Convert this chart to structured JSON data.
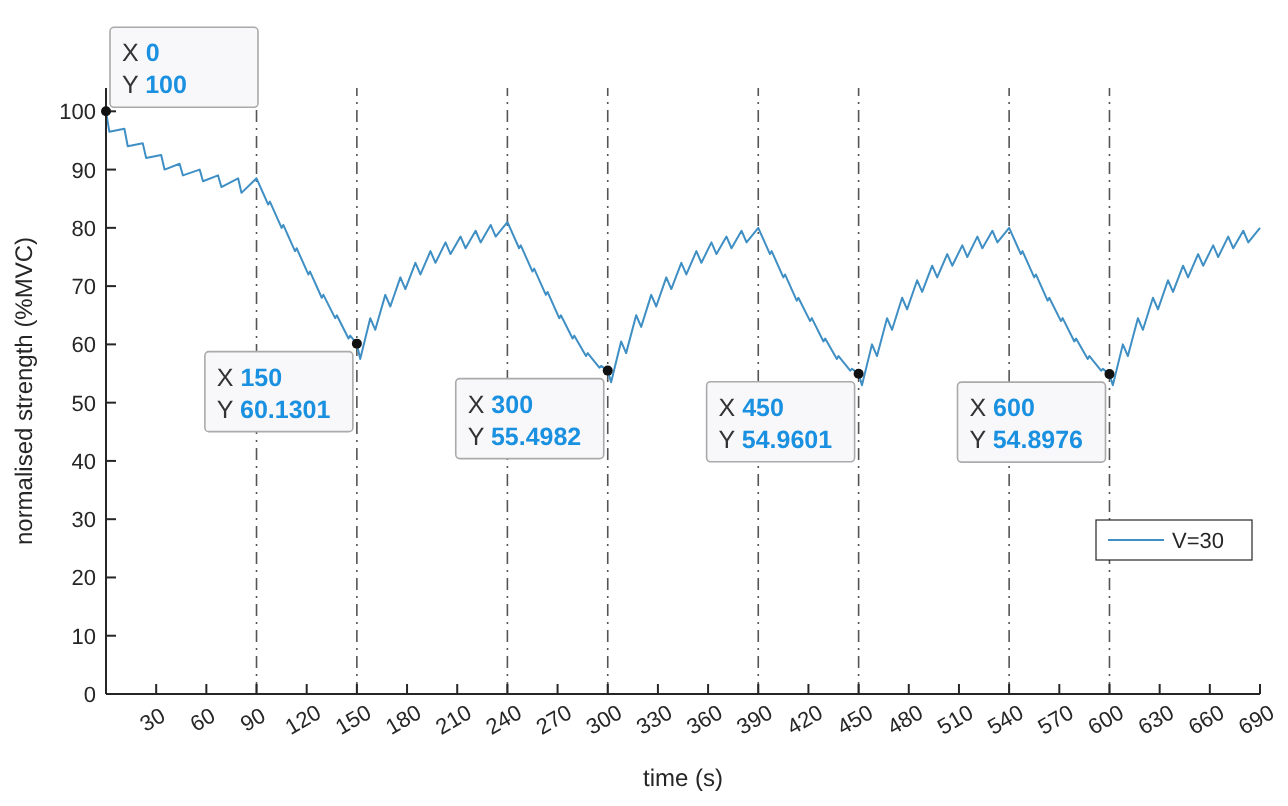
{
  "chart_data": {
    "type": "line",
    "xlabel": "time (s)",
    "ylabel": "normalised strength (%MVC)",
    "xlim": [
      0,
      690
    ],
    "ylim": [
      0,
      104
    ],
    "xticks": [
      30,
      60,
      90,
      120,
      150,
      180,
      210,
      240,
      270,
      300,
      330,
      360,
      390,
      420,
      450,
      480,
      510,
      540,
      570,
      600,
      630,
      660,
      690
    ],
    "yticks": [
      0,
      10,
      20,
      30,
      40,
      50,
      60,
      70,
      80,
      90,
      100
    ],
    "grid": false,
    "legend": "right",
    "marker": "none",
    "line_style": "solid",
    "x": [
      0,
      2,
      11,
      13,
      22,
      24,
      33,
      35,
      44,
      46,
      56,
      58,
      67,
      69,
      79,
      81,
      90,
      97,
      98,
      105,
      106,
      113,
      114,
      121,
      122,
      129,
      130,
      137,
      138,
      145,
      146,
      150,
      152,
      158,
      161,
      167,
      170,
      176,
      179,
      185,
      188,
      194,
      197,
      203,
      206,
      212,
      215,
      221,
      224,
      230,
      233,
      240,
      247,
      248,
      255,
      256,
      263,
      264,
      271,
      272,
      279,
      280,
      287,
      288,
      295,
      296,
      300,
      302,
      308,
      311,
      317,
      320,
      326,
      329,
      335,
      338,
      344,
      347,
      353,
      356,
      362,
      365,
      371,
      374,
      380,
      383,
      390,
      397,
      398,
      405,
      406,
      413,
      414,
      421,
      422,
      429,
      430,
      437,
      438,
      445,
      446,
      450,
      452,
      458,
      461,
      467,
      470,
      476,
      479,
      485,
      488,
      494,
      497,
      503,
      506,
      512,
      515,
      521,
      524,
      530,
      533,
      540,
      547,
      548,
      555,
      556,
      563,
      564,
      571,
      572,
      579,
      580,
      587,
      588,
      595,
      596,
      600,
      602,
      608,
      611,
      617,
      620,
      626,
      629,
      635,
      638,
      644,
      647,
      653,
      656,
      662,
      665,
      671,
      674,
      680,
      683,
      690
    ],
    "series": [
      {
        "name": "V=30",
        "color": "#3f8fc4",
        "values": [
          100,
          96.5,
          97,
          94,
          94.5,
          92,
          92.5,
          90,
          91,
          89,
          90,
          88,
          89,
          87,
          88.5,
          86,
          88.5,
          84,
          84.5,
          80,
          80.5,
          76,
          76.5,
          72,
          72.5,
          68,
          68.5,
          64.5,
          65,
          61,
          61.5,
          60.1,
          57.5,
          64.5,
          62.5,
          68.5,
          66.5,
          71.5,
          69.5,
          74,
          72,
          76,
          74,
          77.5,
          75.5,
          78.5,
          76.5,
          79.5,
          77.5,
          80.5,
          78.5,
          81,
          76.5,
          77,
          72.5,
          73,
          68.5,
          69,
          64.5,
          65,
          61,
          61.5,
          58,
          58.5,
          56,
          56.3,
          55.5,
          53.5,
          60.5,
          58.5,
          65,
          63,
          68.5,
          66.5,
          71.5,
          69.5,
          74,
          72,
          76,
          74,
          77.5,
          75.5,
          78.5,
          76.5,
          79.5,
          77.5,
          80,
          75.5,
          76,
          71.5,
          72,
          67.5,
          68,
          64,
          64.5,
          60.5,
          61,
          57.5,
          58,
          55.5,
          55.8,
          55,
          53,
          60,
          58,
          64.5,
          62.5,
          68,
          66,
          71,
          69,
          73.5,
          71.5,
          75.5,
          73.5,
          77,
          75,
          78.5,
          76.5,
          79.5,
          77.5,
          80,
          75.5,
          76,
          71.5,
          72,
          67.5,
          68,
          64,
          64.5,
          60.5,
          61,
          57.5,
          58,
          55.5,
          55.8,
          54.9,
          53,
          60,
          58,
          64.5,
          62.5,
          68,
          66,
          71,
          69,
          73.5,
          71.5,
          75.5,
          73.5,
          77,
          75,
          78.5,
          76.5,
          79.5,
          77.5,
          80
        ]
      }
    ],
    "ref_lines": [
      {
        "axis": "x",
        "value": 90,
        "color": "#555555",
        "line_style": "dashed"
      },
      {
        "axis": "x",
        "value": 150,
        "color": "#555555",
        "line_style": "dashed"
      },
      {
        "axis": "x",
        "value": 240,
        "color": "#555555",
        "line_style": "dashed"
      },
      {
        "axis": "x",
        "value": 300,
        "color": "#555555",
        "line_style": "dashed"
      },
      {
        "axis": "x",
        "value": 390,
        "color": "#555555",
        "line_style": "dashed"
      },
      {
        "axis": "x",
        "value": 450,
        "color": "#555555",
        "line_style": "dashed"
      },
      {
        "axis": "x",
        "value": 540,
        "color": "#555555",
        "line_style": "dashed"
      },
      {
        "axis": "x",
        "value": 600,
        "color": "#555555",
        "line_style": "dashed"
      }
    ],
    "annotations": [
      {
        "text": "X 0\nY 100",
        "x": 0,
        "y": 100
      },
      {
        "text": "X 150\nY 60.1301",
        "x": 150,
        "y": 60.1301
      },
      {
        "text": "X 300\nY 55.4982",
        "x": 300,
        "y": 55.4982
      },
      {
        "text": "X 450\nY 54.9601",
        "x": 450,
        "y": 54.9601
      },
      {
        "text": "X 600\nY 54.8976",
        "x": 600,
        "y": 54.8976
      }
    ]
  }
}
